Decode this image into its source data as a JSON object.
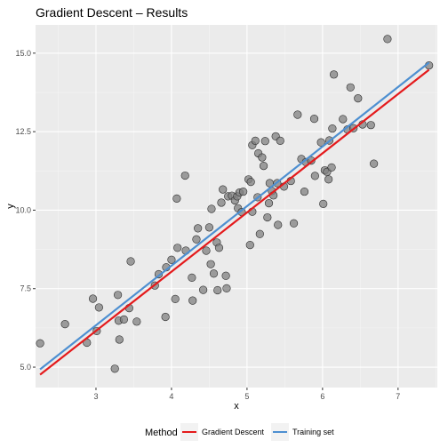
{
  "chart_data": {
    "type": "scatter",
    "title": "Gradient Descent – Results",
    "xlabel": "x",
    "ylabel": "y",
    "xlim": [
      2.2,
      7.52
    ],
    "ylim": [
      4.35,
      15.9
    ],
    "x_ticks": [
      3,
      4,
      5,
      6,
      7
    ],
    "y_ticks": [
      5.0,
      7.5,
      10.0,
      12.5,
      15.0
    ],
    "x_tick_labels": [
      "3",
      "4",
      "5",
      "6",
      "7"
    ],
    "y_tick_labels": [
      "5.0",
      "7.5",
      "10.0",
      "12.5",
      "15.0"
    ],
    "grid": true,
    "legend_position": "bottom",
    "legend_title": "Method",
    "colors": {
      "panel": "#ebebeb",
      "grid_major": "#ffffff",
      "grid_minor": "#f5f5f5",
      "point_fill": "#808080",
      "point_stroke": "#2b2b2b",
      "gradient_descent": "#e41a1c",
      "training_set": "#4d8fd1"
    },
    "points": [
      [
        2.26,
        5.76
      ],
      [
        2.59,
        6.37
      ],
      [
        2.88,
        5.78
      ],
      [
        2.96,
        7.18
      ],
      [
        3.01,
        6.15
      ],
      [
        3.04,
        6.9
      ],
      [
        3.25,
        4.95
      ],
      [
        3.29,
        7.3
      ],
      [
        3.3,
        6.48
      ],
      [
        3.31,
        5.88
      ],
      [
        3.37,
        6.52
      ],
      [
        3.44,
        6.88
      ],
      [
        3.46,
        8.37
      ],
      [
        3.54,
        6.45
      ],
      [
        3.78,
        7.6
      ],
      [
        3.83,
        7.96
      ],
      [
        3.92,
        6.6
      ],
      [
        3.93,
        8.18
      ],
      [
        4.0,
        8.42
      ],
      [
        4.05,
        7.17
      ],
      [
        4.07,
        10.37
      ],
      [
        4.08,
        8.8
      ],
      [
        4.18,
        11.1
      ],
      [
        4.19,
        8.71
      ],
      [
        4.27,
        7.85
      ],
      [
        4.28,
        7.12
      ],
      [
        4.33,
        9.07
      ],
      [
        4.35,
        9.42
      ],
      [
        4.42,
        7.46
      ],
      [
        4.46,
        8.71
      ],
      [
        4.5,
        9.45
      ],
      [
        4.52,
        8.28
      ],
      [
        4.53,
        10.04
      ],
      [
        4.56,
        7.98
      ],
      [
        4.6,
        8.97
      ],
      [
        4.61,
        7.45
      ],
      [
        4.63,
        8.8
      ],
      [
        4.66,
        10.24
      ],
      [
        4.68,
        10.66
      ],
      [
        4.72,
        7.91
      ],
      [
        4.73,
        7.51
      ],
      [
        4.75,
        10.44
      ],
      [
        4.8,
        10.46
      ],
      [
        4.84,
        10.31
      ],
      [
        4.87,
        10.44
      ],
      [
        4.88,
        10.06
      ],
      [
        4.9,
        10.56
      ],
      [
        4.93,
        9.94
      ],
      [
        4.95,
        10.59
      ],
      [
        5.02,
        10.98
      ],
      [
        5.04,
        8.89
      ],
      [
        5.05,
        10.9
      ],
      [
        5.07,
        12.07
      ],
      [
        5.07,
        9.95
      ],
      [
        5.11,
        12.21
      ],
      [
        5.14,
        10.41
      ],
      [
        5.15,
        11.81
      ],
      [
        5.17,
        9.24
      ],
      [
        5.2,
        11.68
      ],
      [
        5.22,
        11.41
      ],
      [
        5.24,
        12.2
      ],
      [
        5.27,
        9.77
      ],
      [
        5.29,
        10.22
      ],
      [
        5.3,
        10.86
      ],
      [
        5.33,
        10.61
      ],
      [
        5.35,
        10.47
      ],
      [
        5.38,
        12.35
      ],
      [
        5.4,
        10.86
      ],
      [
        5.41,
        9.53
      ],
      [
        5.44,
        12.21
      ],
      [
        5.49,
        10.75
      ],
      [
        5.58,
        10.93
      ],
      [
        5.62,
        9.58
      ],
      [
        5.67,
        13.04
      ],
      [
        5.72,
        11.63
      ],
      [
        5.76,
        10.59
      ],
      [
        5.78,
        11.53
      ],
      [
        5.85,
        11.58
      ],
      [
        5.89,
        12.91
      ],
      [
        5.9,
        11.09
      ],
      [
        5.98,
        12.16
      ],
      [
        6.01,
        10.2
      ],
      [
        6.03,
        11.27
      ],
      [
        6.06,
        11.22
      ],
      [
        6.08,
        10.98
      ],
      [
        6.09,
        12.22
      ],
      [
        6.12,
        11.36
      ],
      [
        6.13,
        12.6
      ],
      [
        6.15,
        14.32
      ],
      [
        6.27,
        12.9
      ],
      [
        6.33,
        12.57
      ],
      [
        6.37,
        13.91
      ],
      [
        6.41,
        12.61
      ],
      [
        6.47,
        13.56
      ],
      [
        6.53,
        12.73
      ],
      [
        6.64,
        12.71
      ],
      [
        6.68,
        11.48
      ],
      [
        6.86,
        15.45
      ],
      [
        7.41,
        14.61
      ]
    ],
    "series": [
      {
        "name": "Gradient Descent",
        "type": "line",
        "x": [
          2.26,
          7.41
        ],
        "y": [
          4.76,
          14.47
        ]
      },
      {
        "name": "Training set",
        "type": "line",
        "x": [
          2.26,
          7.41
        ],
        "y": [
          4.93,
          14.7
        ]
      }
    ]
  }
}
